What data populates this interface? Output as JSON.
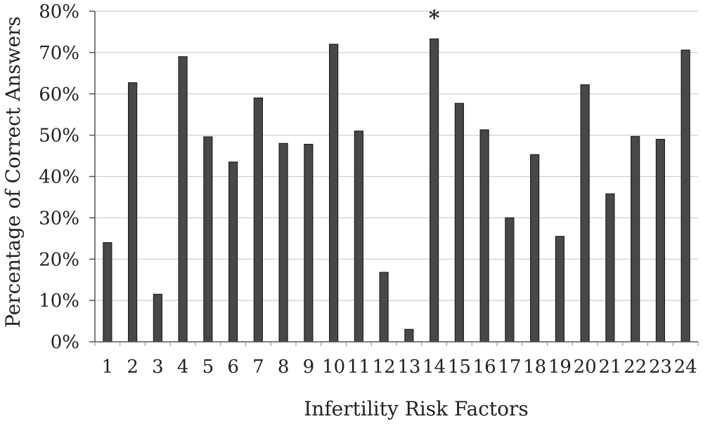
{
  "chart_data": {
    "type": "bar",
    "title": "",
    "xlabel": "Infertility Risk Factors",
    "ylabel": "Percentage of Correct Answers",
    "categories": [
      "1",
      "2",
      "3",
      "4",
      "5",
      "6",
      "7",
      "8",
      "9",
      "10",
      "11",
      "12",
      "13",
      "14",
      "15",
      "16",
      "17",
      "18",
      "19",
      "20",
      "21",
      "22",
      "23",
      "24"
    ],
    "values": [
      24,
      62.7,
      11.5,
      69,
      49.6,
      43.5,
      59,
      48,
      47.8,
      72,
      51,
      16.8,
      3,
      73.3,
      57.7,
      51.3,
      30,
      45.3,
      25.5,
      62.2,
      35.8,
      49.7,
      49,
      70.6
    ],
    "ylim": [
      0,
      80
    ],
    "yticks": [
      0,
      10,
      20,
      30,
      40,
      50,
      60,
      70,
      80
    ],
    "ytick_suffix": "%",
    "grid": true,
    "legend": "none",
    "bar_color": "#484848",
    "annotations": [
      {
        "category": "14",
        "text": "*"
      }
    ]
  }
}
